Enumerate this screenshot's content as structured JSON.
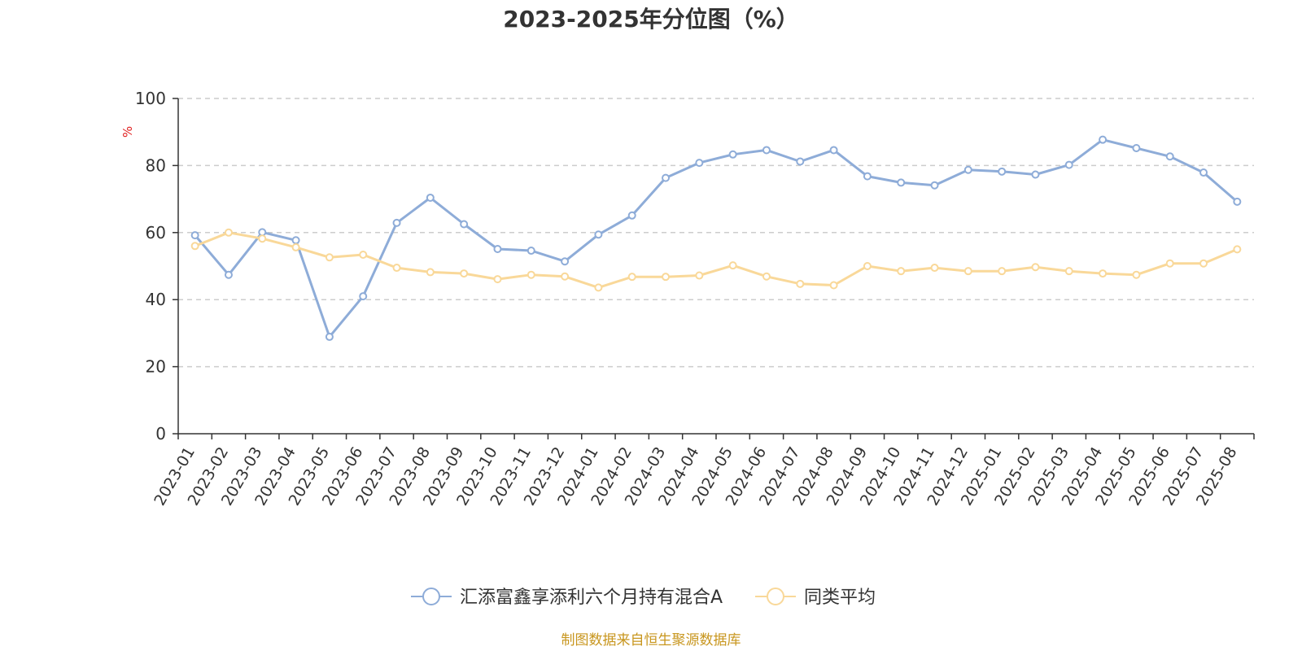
{
  "chart_data": {
    "type": "line",
    "title": "2023-2025年分位图（%）",
    "y_unit": "%",
    "ylim": [
      0,
      100
    ],
    "y_ticks": [
      0,
      20,
      40,
      60,
      80,
      100
    ],
    "grid": "horizontal-dashed",
    "legend_position": "bottom-center",
    "categories": [
      "2023-01",
      "2023-02",
      "2023-03",
      "2023-04",
      "2023-05",
      "2023-06",
      "2023-07",
      "2023-08",
      "2023-09",
      "2023-10",
      "2023-11",
      "2023-12",
      "2024-01",
      "2024-02",
      "2024-03",
      "2024-04",
      "2024-05",
      "2024-06",
      "2024-07",
      "2024-08",
      "2024-09",
      "2024-10",
      "2024-11",
      "2024-12",
      "2025-01",
      "2025-02",
      "2025-03",
      "2025-04",
      "2025-05",
      "2025-06",
      "2025-07",
      "2025-08"
    ],
    "series": [
      {
        "name": "汇添富鑫享添利六个月持有混合A",
        "color": "#8eacd8",
        "values": [
          59.2,
          47.4,
          60.1,
          57.7,
          28.9,
          41.0,
          62.9,
          70.4,
          62.5,
          55.1,
          54.6,
          51.4,
          59.4,
          65.1,
          76.3,
          80.8,
          83.3,
          84.6,
          81.2,
          84.6,
          76.8,
          74.9,
          74.1,
          78.7,
          78.2,
          77.3,
          80.2,
          87.7,
          85.2,
          82.7,
          77.9,
          69.2
        ]
      },
      {
        "name": "同类平均",
        "color": "#f9d899",
        "values": [
          56.0,
          60.0,
          58.2,
          55.6,
          52.6,
          53.4,
          49.5,
          48.2,
          47.8,
          46.1,
          47.4,
          46.9,
          43.6,
          46.8,
          46.8,
          47.2,
          50.2,
          46.9,
          44.7,
          44.3,
          50.0,
          48.5,
          49.5,
          48.5,
          48.5,
          49.7,
          48.5,
          47.8,
          47.4,
          50.8,
          50.8,
          55.0
        ]
      }
    ]
  },
  "source_text": "制图数据来自恒生聚源数据库",
  "source_color": "#c8961e",
  "unit_color": "#e02020"
}
